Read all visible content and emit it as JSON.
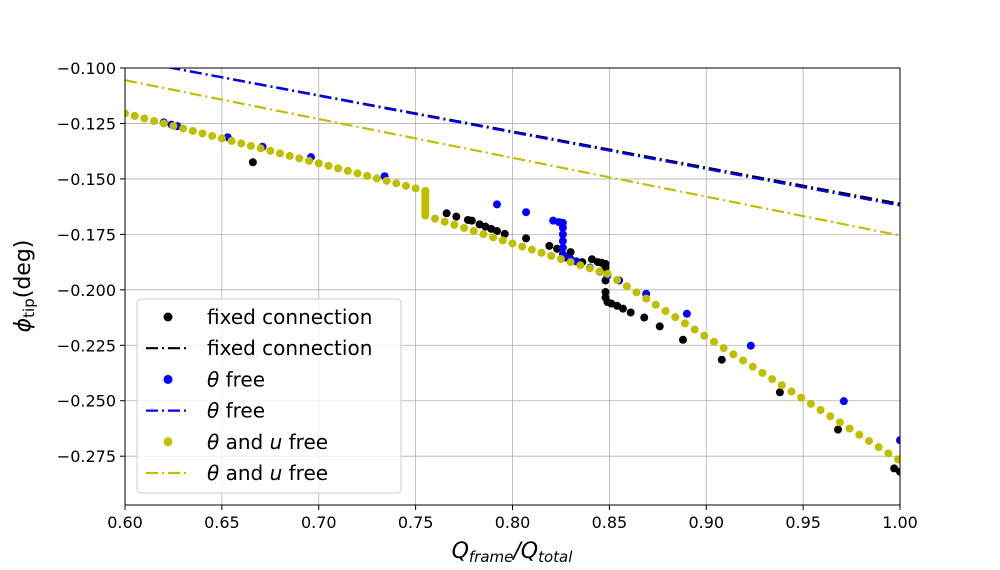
{
  "chart_data": {
    "type": "scatter",
    "title": "",
    "xlabel": "Q_frame/Q_total",
    "ylabel": "φ_tip(deg)",
    "xlim": [
      0.6,
      1.0
    ],
    "ylim": [
      -0.297,
      -0.1
    ],
    "xticks": [
      0.6,
      0.65,
      0.7,
      0.75,
      0.8,
      0.85,
      0.9,
      0.95,
      1.0
    ],
    "xtick_labels": [
      "0.60",
      "0.65",
      "0.70",
      "0.75",
      "0.80",
      "0.85",
      "0.90",
      "0.95",
      "1.00"
    ],
    "yticks": [
      -0.1,
      -0.125,
      -0.15,
      -0.175,
      -0.2,
      -0.225,
      -0.25,
      -0.275
    ],
    "ytick_labels": [
      "−0.100",
      "−0.125",
      "−0.150",
      "−0.175",
      "−0.200",
      "−0.225",
      "−0.250",
      "−0.275"
    ],
    "grid": true,
    "legend_position": "lower-left",
    "series": [
      {
        "name": "fixed connection",
        "kind": "scatter",
        "color": "#000000",
        "points": [
          [
            0.666,
            -0.1425
          ],
          [
            0.766,
            -0.1655
          ],
          [
            0.771,
            -0.167
          ],
          [
            0.777,
            -0.1685
          ],
          [
            0.779,
            -0.1688
          ],
          [
            0.783,
            -0.1705
          ],
          [
            0.786,
            -0.1715
          ],
          [
            0.789,
            -0.1725
          ],
          [
            0.792,
            -0.1735
          ],
          [
            0.796,
            -0.1748
          ],
          [
            0.807,
            -0.1768
          ],
          [
            0.819,
            -0.1802
          ],
          [
            0.823,
            -0.1815
          ],
          [
            0.826,
            -0.1855
          ],
          [
            0.83,
            -0.183
          ],
          [
            0.836,
            -0.1875
          ],
          [
            0.841,
            -0.1862
          ],
          [
            0.844,
            -0.1875
          ],
          [
            0.846,
            -0.1878
          ],
          [
            0.848,
            -0.1883
          ],
          [
            0.848,
            -0.19
          ],
          [
            0.848,
            -0.1958
          ],
          [
            0.848,
            -0.201
          ],
          [
            0.848,
            -0.2035
          ],
          [
            0.849,
            -0.2055
          ],
          [
            0.851,
            -0.2062
          ],
          [
            0.854,
            -0.2072
          ],
          [
            0.857,
            -0.2085
          ],
          [
            0.861,
            -0.2102
          ],
          [
            0.868,
            -0.2125
          ],
          [
            0.876,
            -0.2165
          ],
          [
            0.888,
            -0.2225
          ],
          [
            0.908,
            -0.2315
          ],
          [
            0.938,
            -0.2462
          ],
          [
            0.968,
            -0.263
          ],
          [
            0.997,
            -0.2805
          ],
          [
            1.0,
            -0.282
          ]
        ]
      },
      {
        "name": "fixed connection",
        "kind": "line",
        "dash": "dashdot",
        "color": "#000000",
        "points": [
          [
            0.6,
            -0.096
          ],
          [
            1.0,
            -0.1612
          ]
        ]
      },
      {
        "name": "θ free",
        "kind": "scatter",
        "color": "#0000ff",
        "points": [
          [
            0.62,
            -0.1245
          ],
          [
            0.624,
            -0.1255
          ],
          [
            0.627,
            -0.1262
          ],
          [
            0.653,
            -0.1312
          ],
          [
            0.671,
            -0.1355
          ],
          [
            0.696,
            -0.1402
          ],
          [
            0.734,
            -0.1488
          ],
          [
            0.792,
            -0.1615
          ],
          [
            0.807,
            -0.165
          ],
          [
            0.821,
            -0.1688
          ],
          [
            0.824,
            -0.1695
          ],
          [
            0.826,
            -0.1698
          ],
          [
            0.826,
            -0.172
          ],
          [
            0.826,
            -0.175
          ],
          [
            0.826,
            -0.178
          ],
          [
            0.826,
            -0.181
          ],
          [
            0.826,
            -0.184
          ],
          [
            0.828,
            -0.1855
          ],
          [
            0.83,
            -0.1862
          ],
          [
            0.833,
            -0.1872
          ],
          [
            0.84,
            -0.19
          ],
          [
            0.845,
            -0.1918
          ],
          [
            0.849,
            -0.1935
          ],
          [
            0.855,
            -0.1958
          ],
          [
            0.869,
            -0.2018
          ],
          [
            0.89,
            -0.2108
          ],
          [
            0.923,
            -0.2252
          ],
          [
            0.971,
            -0.2502
          ],
          [
            1.0,
            -0.2678
          ]
        ]
      },
      {
        "name": "θ free",
        "kind": "line",
        "dash": "dashdot",
        "color": "#0000ff",
        "points": [
          [
            0.6,
            -0.096
          ],
          [
            1.0,
            -0.162
          ]
        ]
      },
      {
        "name": "θ and u free",
        "kind": "scatter",
        "color": "#bfbf00",
        "x_start": 0.6,
        "x_step": 0.005,
        "segments": [
          {
            "x_range": [
              0.6,
              0.755
            ],
            "y_at_start": -0.1205,
            "slope": -0.225
          },
          {
            "vertical_at": 0.755,
            "y_range": [
              -0.1555,
              -0.1665
            ]
          },
          {
            "x_range": [
              0.755,
              0.849
            ],
            "y_at_start": -0.1665,
            "slope": -0.28
          },
          {
            "x_range": [
              0.849,
              1.0
            ],
            "y_at_start": -0.1928,
            "slope": -0.558
          }
        ]
      },
      {
        "name": "θ and u free",
        "kind": "line",
        "dash": "dashdot",
        "color": "#bfbf00",
        "points": [
          [
            0.6,
            -0.1055
          ],
          [
            1.0,
            -0.1755
          ]
        ]
      }
    ],
    "legend": [
      {
        "label_prefix": "",
        "label_main": "fixed connection",
        "kind": "marker",
        "color": "#000000"
      },
      {
        "label_prefix": "",
        "label_main": "fixed connection",
        "kind": "line",
        "color": "#000000"
      },
      {
        "label_prefix": "θ",
        "label_main": " free",
        "kind": "marker",
        "color": "#0000ff"
      },
      {
        "label_prefix": "θ",
        "label_main": " free",
        "kind": "line",
        "color": "#0000ff"
      },
      {
        "label_prefix": "θ",
        "label_main": " and ",
        "label_suffix_italic": "u",
        "label_tail": " free",
        "kind": "marker",
        "color": "#bfbf00"
      },
      {
        "label_prefix": "θ",
        "label_main": " and ",
        "label_suffix_italic": "u",
        "label_tail": " free",
        "kind": "line",
        "color": "#bfbf00"
      }
    ]
  }
}
